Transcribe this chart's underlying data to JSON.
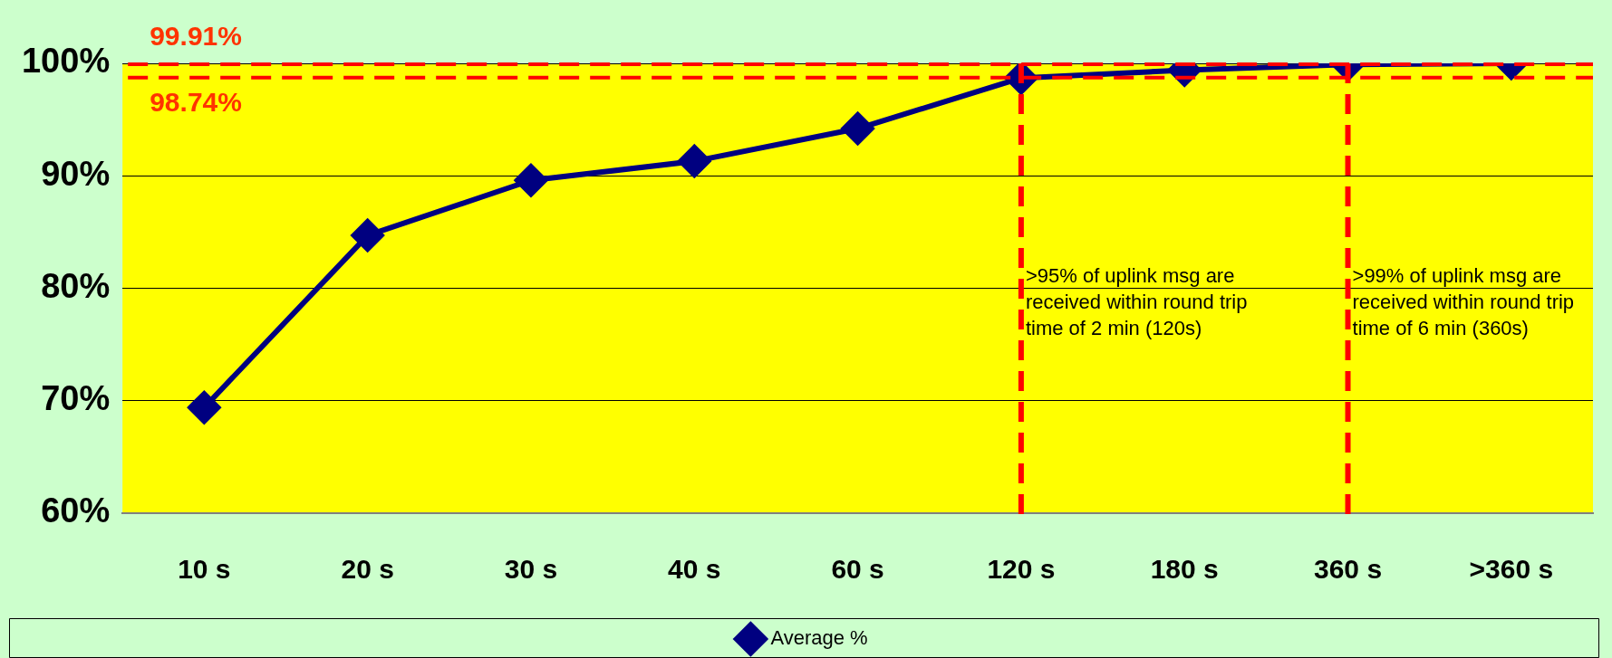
{
  "chart_data": {
    "type": "line",
    "categories": [
      "10 s",
      "20 s",
      "30 s",
      "40 s",
      "60 s",
      "120 s",
      "180 s",
      "360 s",
      ">360 s"
    ],
    "series": [
      {
        "name": "Average %",
        "color": "#000080",
        "values": [
          69.4,
          84.7,
          89.6,
          91.3,
          94.2,
          98.7,
          99.4,
          99.9,
          100
        ]
      }
    ],
    "ylim": [
      60,
      100
    ],
    "yticks": [
      {
        "value": 60,
        "label": "60%"
      },
      {
        "value": 70,
        "label": "70%"
      },
      {
        "value": 80,
        "label": "80%"
      },
      {
        "value": 90,
        "label": "90%"
      },
      {
        "value": 100,
        "label": "100%"
      }
    ],
    "grid": "y",
    "legend": "bottom",
    "marker": "diamond",
    "line_style": "solid",
    "ref_lines": [
      {
        "axis": "y",
        "value": 99.91,
        "label": "99.91%",
        "color": "#ff0000",
        "line_style": "dashed"
      },
      {
        "axis": "y",
        "value": 98.74,
        "label": "98.74%",
        "color": "#ff0000",
        "line_style": "dashed"
      },
      {
        "axis": "x",
        "value": "120 s",
        "color": "#ff0000",
        "line_style": "dashed"
      },
      {
        "axis": "x",
        "value": "360 s",
        "color": "#ff0000",
        "line_style": "dashed"
      }
    ],
    "annotations": [
      {
        "text": ">95% of uplink msg are received within round trip time of 2 min (120s)",
        "x": "120 s",
        "y": 80
      },
      {
        "text": ">99% of uplink msg are received within round trip time of 6 min (360s)",
        "x": "360 s",
        "y": 80
      }
    ]
  }
}
